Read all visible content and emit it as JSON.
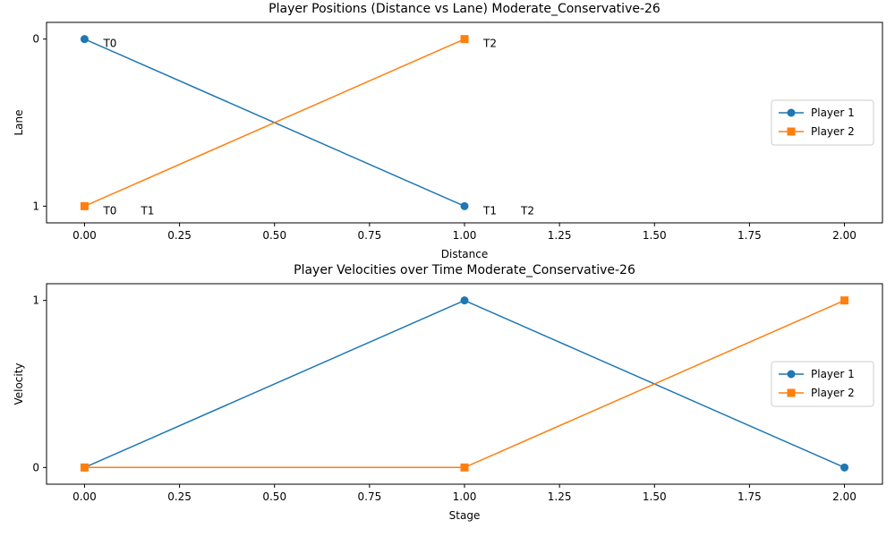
{
  "chart_data": [
    {
      "type": "line",
      "title": "Player Positions (Distance vs Lane) Moderate_Conservative-26",
      "xlabel": "Distance",
      "ylabel": "Lane",
      "xlim": [
        -0.1,
        2.1
      ],
      "ylim": [
        1.1,
        -0.1
      ],
      "y_inverted": true,
      "x_ticks": [
        "0.00",
        "0.25",
        "0.50",
        "0.75",
        "1.00",
        "1.25",
        "1.50",
        "1.75",
        "2.00"
      ],
      "x_tick_values": [
        0,
        0.25,
        0.5,
        0.75,
        1.0,
        1.25,
        1.5,
        1.75,
        2.0
      ],
      "y_ticks": [
        "0",
        "1"
      ],
      "y_tick_values": [
        0,
        1
      ],
      "grid": false,
      "legend_position": "center-right",
      "series": [
        {
          "name": "Player 1",
          "color": "#1f77b4",
          "marker": "circle",
          "x": [
            0,
            1
          ],
          "y": [
            0,
            1
          ]
        },
        {
          "name": "Player 2",
          "color": "#ff7f0e",
          "marker": "square",
          "x": [
            0,
            1
          ],
          "y": [
            1,
            0
          ]
        }
      ],
      "annotations": [
        {
          "text": "T0",
          "x": 0,
          "y": 0,
          "slot": 0
        },
        {
          "text": "T1",
          "x": 1,
          "y": 1,
          "slot": 0
        },
        {
          "text": "T0",
          "x": 0,
          "y": 1,
          "slot": 0
        },
        {
          "text": "T2",
          "x": 1,
          "y": 0,
          "slot": 0
        },
        {
          "text": "T1",
          "x": 0,
          "y": 1,
          "slot": 1
        },
        {
          "text": "T2",
          "x": 1,
          "y": 1,
          "slot": 1
        }
      ]
    },
    {
      "type": "line",
      "title": "Player Velocities over Time Moderate_Conservative-26",
      "xlabel": "Stage",
      "ylabel": "Velocity",
      "xlim": [
        -0.1,
        2.1
      ],
      "ylim": [
        -0.1,
        1.1
      ],
      "y_inverted": false,
      "x_ticks": [
        "0.00",
        "0.25",
        "0.50",
        "0.75",
        "1.00",
        "1.25",
        "1.50",
        "1.75",
        "2.00"
      ],
      "x_tick_values": [
        0,
        0.25,
        0.5,
        0.75,
        1.0,
        1.25,
        1.5,
        1.75,
        2.0
      ],
      "y_ticks": [
        "0",
        "1"
      ],
      "y_tick_values": [
        0,
        1
      ],
      "grid": false,
      "legend_position": "center-right",
      "series": [
        {
          "name": "Player 1",
          "color": "#1f77b4",
          "marker": "circle",
          "x": [
            0,
            1,
            2
          ],
          "y": [
            0,
            1,
            0
          ]
        },
        {
          "name": "Player 2",
          "color": "#ff7f0e",
          "marker": "square",
          "x": [
            0,
            1,
            2
          ],
          "y": [
            0,
            0,
            1
          ]
        }
      ],
      "annotations": []
    }
  ]
}
